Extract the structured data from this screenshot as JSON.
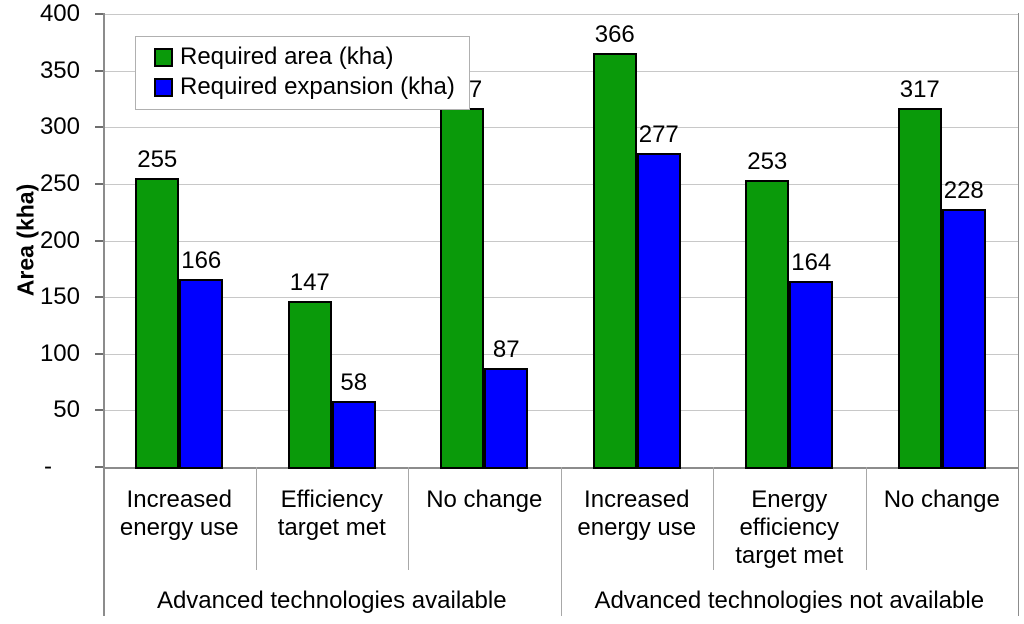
{
  "chart_data": {
    "type": "bar",
    "title": "",
    "ylabel": "Area (kha)",
    "ylim": [
      0,
      400
    ],
    "ytick_step": 50,
    "zero_tick_label": "-",
    "grid": true,
    "legend_position": "top-left",
    "categories": [
      "Increased energy use",
      "Efficiency target met",
      "No change",
      "Increased energy use",
      "Energy efficiency target met",
      "No change"
    ],
    "category_label_lines": [
      [
        "Increased",
        "energy use"
      ],
      [
        "Efficiency",
        "target met"
      ],
      [
        "No change"
      ],
      [
        "Increased",
        "energy use"
      ],
      [
        "Energy",
        "efficiency",
        "target met"
      ],
      [
        "No change"
      ]
    ],
    "groups": [
      {
        "label": "Advanced technologies available",
        "start": 0,
        "end": 2
      },
      {
        "label": "Advanced technologies not available",
        "start": 3,
        "end": 5
      }
    ],
    "series": [
      {
        "name": "Required area (kha)",
        "color": "#0A9A0A",
        "values": [
          255,
          147,
          317,
          366,
          253,
          317
        ]
      },
      {
        "name": "Required expansion (kha)",
        "color": "#0000FF",
        "values": [
          166,
          58,
          87,
          277,
          164,
          228
        ]
      }
    ],
    "colors": {
      "grid": "#C8C8C8",
      "axis": "#8C8C8C",
      "divider": "#A8A8A8",
      "bar_border": "#000000"
    }
  }
}
